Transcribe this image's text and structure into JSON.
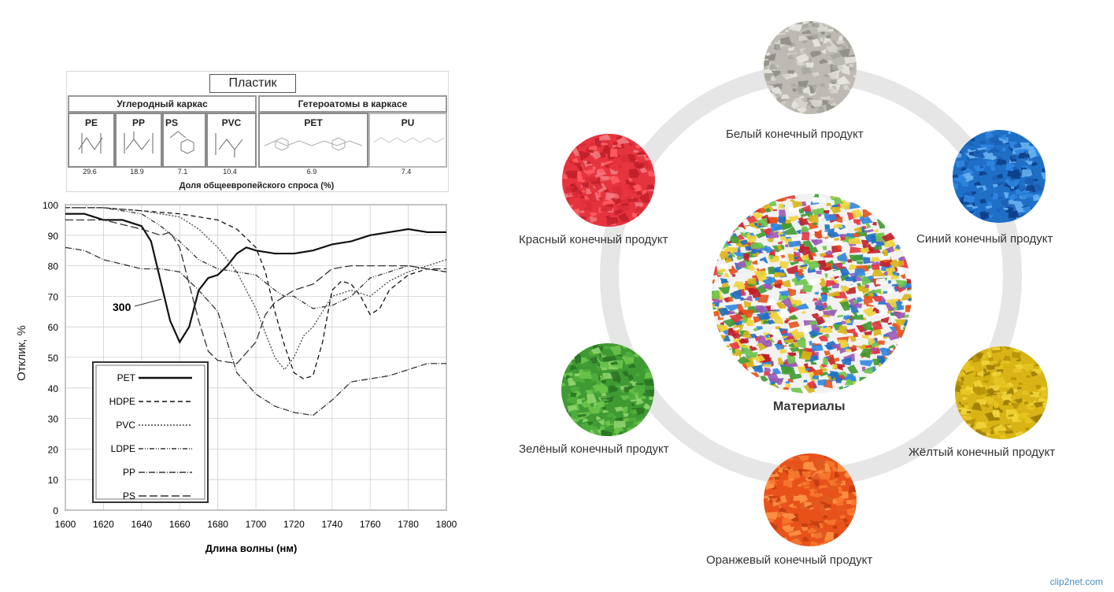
{
  "table": {
    "title": "Пластик",
    "group_left": "Углеродный каркас",
    "group_right": "Гетероатомы в каркасе",
    "columns": [
      {
        "name": "PE",
        "value": "29.6"
      },
      {
        "name": "PP",
        "value": "18.9"
      },
      {
        "name": "PS",
        "value": "7.1"
      },
      {
        "name": "PVC",
        "value": "10.4"
      },
      {
        "name": "PET",
        "value": "6.9"
      },
      {
        "name": "PU",
        "value": "7.4"
      }
    ],
    "footer": "Доля общеевропейского спроса (%)"
  },
  "chart_data": {
    "type": "line",
    "xlabel": "Длина волны (нм)",
    "ylabel": "Отклик, %",
    "xlim": [
      1600,
      1800
    ],
    "ylim": [
      0,
      100
    ],
    "x_ticks": [
      "1600",
      "1620",
      "1640",
      "1660",
      "1680",
      "1700",
      "1720",
      "1740",
      "1760",
      "1780",
      "1800"
    ],
    "y_ticks": [
      "0",
      "10",
      "20",
      "30",
      "40",
      "50",
      "60",
      "70",
      "80",
      "90",
      "100"
    ],
    "annotation": "300",
    "legend_position": "bottom-left",
    "series": [
      {
        "name": "PET",
        "color": "#111111",
        "dash": "",
        "x": [
          1600,
          1610,
          1620,
          1630,
          1640,
          1645,
          1650,
          1655,
          1660,
          1665,
          1670,
          1675,
          1680,
          1685,
          1690,
          1695,
          1700,
          1710,
          1720,
          1730,
          1740,
          1750,
          1760,
          1770,
          1780,
          1790,
          1800
        ],
        "y": [
          97,
          97,
          95,
          95,
          93,
          88,
          75,
          62,
          55,
          60,
          72,
          76,
          77,
          80,
          84,
          86,
          85,
          84,
          84,
          85,
          87,
          88,
          90,
          91,
          92,
          91,
          91
        ]
      },
      {
        "name": "HDPE",
        "color": "#111111",
        "dash": "6,4",
        "x": [
          1600,
          1620,
          1640,
          1660,
          1680,
          1690,
          1700,
          1705,
          1710,
          1715,
          1720,
          1725,
          1730,
          1735,
          1740,
          1745,
          1750,
          1755,
          1760,
          1765,
          1770,
          1780,
          1790,
          1800
        ],
        "y": [
          99,
          99,
          98,
          97,
          95,
          92,
          86,
          78,
          65,
          54,
          45,
          43,
          44,
          55,
          72,
          75,
          74,
          70,
          64,
          66,
          72,
          77,
          79,
          78
        ]
      },
      {
        "name": "PVC",
        "color": "#444444",
        "dash": "2,2",
        "x": [
          1600,
          1620,
          1640,
          1660,
          1670,
          1680,
          1690,
          1695,
          1700,
          1705,
          1710,
          1715,
          1720,
          1725,
          1730,
          1740,
          1750,
          1760,
          1770,
          1780,
          1790,
          1800
        ],
        "y": [
          99,
          99,
          98,
          96,
          92,
          86,
          78,
          72,
          66,
          58,
          50,
          46,
          50,
          57,
          60,
          70,
          72,
          70,
          75,
          78,
          80,
          82
        ]
      },
      {
        "name": "LDPE",
        "color": "#333333",
        "dash": "6,2,1,2,1,2",
        "x": [
          1600,
          1620,
          1640,
          1650,
          1660,
          1670,
          1680,
          1690,
          1700,
          1710,
          1715,
          1720,
          1725,
          1730,
          1740,
          1750,
          1760,
          1770,
          1780,
          1790,
          1800
        ],
        "y": [
          99,
          99,
          97,
          93,
          88,
          82,
          79,
          78,
          77,
          72,
          70,
          70,
          68,
          66,
          67,
          70,
          76,
          78,
          80,
          79,
          78
        ]
      },
      {
        "name": "PP",
        "color": "#333333",
        "dash": "8,2,1,2",
        "x": [
          1600,
          1610,
          1620,
          1640,
          1650,
          1660,
          1670,
          1680,
          1685,
          1690,
          1700,
          1710,
          1720,
          1730,
          1740,
          1750,
          1760,
          1770,
          1780,
          1790,
          1800
        ],
        "y": [
          86,
          85,
          82,
          79,
          79,
          78,
          72,
          65,
          55,
          45,
          38,
          34,
          32,
          31,
          36,
          42,
          43,
          44,
          46,
          48,
          48
        ]
      },
      {
        "name": "PS",
        "color": "#333333",
        "dash": "10,4",
        "x": [
          1600,
          1620,
          1640,
          1650,
          1655,
          1660,
          1665,
          1670,
          1675,
          1680,
          1690,
          1700,
          1705,
          1710,
          1720,
          1730,
          1740,
          1750,
          1760,
          1770,
          1780,
          1790,
          1800
        ],
        "y": [
          95,
          95,
          92,
          90,
          91,
          86,
          74,
          62,
          52,
          49,
          48,
          55,
          64,
          68,
          72,
          74,
          79,
          80,
          80,
          80,
          80,
          79,
          79
        ]
      }
    ]
  },
  "diagram": {
    "center_label": "Материалы",
    "nodes": [
      {
        "label": "Белый конечный продукт",
        "color": "#bcbab2"
      },
      {
        "label": "Синий конечный продукт",
        "color": "#1f6fc7"
      },
      {
        "label": "Жёлтый конечный продукт",
        "color": "#d8b416"
      },
      {
        "label": "Оранжевый конечный продукт",
        "color": "#e8521a"
      },
      {
        "label": "Зелёный конечный продукт",
        "color": "#3f9a33"
      },
      {
        "label": "Красный конечный продукт",
        "color": "#e6343f"
      }
    ],
    "ring_color": "#e6e6e6"
  },
  "watermark": "clip2net.com"
}
